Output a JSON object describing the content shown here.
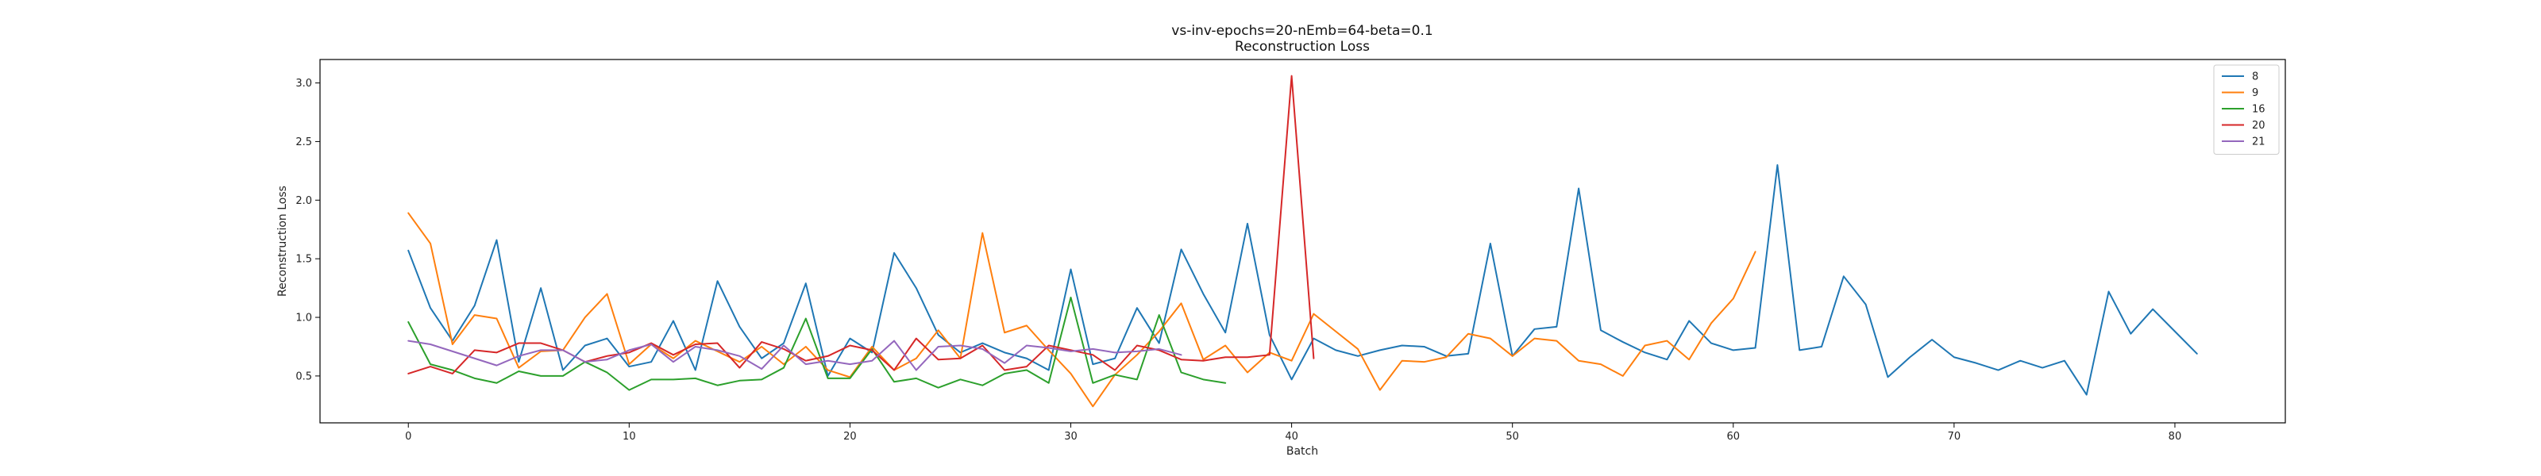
{
  "chart_data": {
    "type": "line",
    "title": "vs-inv-epochs=20-nEmb=64-beta=0.1",
    "subtitle": "Reconstruction Loss",
    "xlabel": "Batch",
    "ylabel": "Reconstruction Loss",
    "xlim": [
      -4,
      85
    ],
    "ylim": [
      0.1,
      3.2
    ],
    "xticks": [
      0,
      10,
      20,
      30,
      40,
      50,
      60,
      70,
      80
    ],
    "yticks": [
      0.5,
      1.0,
      1.5,
      2.0,
      2.5,
      3.0
    ],
    "ytick_labels": [
      "0.5",
      "1.0",
      "1.5",
      "2.0",
      "2.5",
      "3.0"
    ],
    "grid": false,
    "legend_position": "top-right",
    "series": [
      {
        "name": "8",
        "color": "#1f77b4",
        "values": [
          1.57,
          1.08,
          0.8,
          1.1,
          1.66,
          0.62,
          1.25,
          0.55,
          0.76,
          0.82,
          0.58,
          0.62,
          0.97,
          0.55,
          1.31,
          0.92,
          0.65,
          0.78,
          1.29,
          0.5,
          0.82,
          0.7,
          1.55,
          1.25,
          0.85,
          0.7,
          0.78,
          0.7,
          0.65,
          0.55,
          1.41,
          0.6,
          0.65,
          1.08,
          0.78,
          1.58,
          1.2,
          0.87,
          1.8,
          0.85,
          0.47,
          0.82,
          0.72,
          0.67,
          0.72,
          0.76,
          0.75,
          0.67,
          0.69,
          1.63,
          0.67,
          0.9,
          0.92,
          2.1,
          0.89,
          0.79,
          0.7,
          0.64,
          0.97,
          0.78,
          0.72,
          0.74,
          2.3,
          0.72,
          0.75,
          1.35,
          1.11,
          0.49,
          0.66,
          0.81,
          0.66,
          0.61,
          0.55,
          0.63,
          0.57,
          0.63,
          0.34,
          1.22,
          0.86,
          1.07,
          0.88,
          0.69
        ]
      },
      {
        "name": "9",
        "color": "#ff7f0e",
        "values": [
          1.89,
          1.63,
          0.77,
          1.02,
          0.99,
          0.57,
          0.71,
          0.72,
          1.0,
          1.2,
          0.6,
          0.77,
          0.65,
          0.8,
          0.71,
          0.62,
          0.75,
          0.6,
          0.75,
          0.55,
          0.49,
          0.75,
          0.55,
          0.65,
          0.89,
          0.65,
          1.72,
          0.87,
          0.93,
          0.72,
          0.52,
          0.24,
          0.51,
          0.68,
          0.88,
          1.12,
          0.64,
          0.76,
          0.53,
          0.7,
          0.63,
          1.03,
          0.88,
          0.73,
          0.38,
          0.63,
          0.62,
          0.66,
          0.86,
          0.82,
          0.67,
          0.82,
          0.8,
          0.63,
          0.6,
          0.5,
          0.76,
          0.8,
          0.64,
          0.95,
          1.16,
          1.56
        ]
      },
      {
        "name": "16",
        "color": "#2ca02c",
        "values": [
          0.96,
          0.6,
          0.55,
          0.48,
          0.44,
          0.54,
          0.5,
          0.5,
          0.62,
          0.53,
          0.38,
          0.47,
          0.47,
          0.48,
          0.42,
          0.46,
          0.47,
          0.57,
          0.99,
          0.48,
          0.48,
          0.73,
          0.45,
          0.48,
          0.4,
          0.47,
          0.42,
          0.52,
          0.55,
          0.44,
          1.17,
          0.44,
          0.51,
          0.47,
          1.02,
          0.53,
          0.47,
          0.44
        ]
      },
      {
        "name": "20",
        "color": "#d62728",
        "values": [
          0.52,
          0.58,
          0.52,
          0.72,
          0.7,
          0.78,
          0.78,
          0.72,
          0.62,
          0.67,
          0.7,
          0.78,
          0.68,
          0.77,
          0.78,
          0.57,
          0.79,
          0.73,
          0.63,
          0.67,
          0.76,
          0.72,
          0.55,
          0.82,
          0.64,
          0.65,
          0.76,
          0.55,
          0.58,
          0.76,
          0.72,
          0.68,
          0.55,
          0.76,
          0.72,
          0.64,
          0.63,
          0.66,
          0.66,
          0.68,
          3.06,
          0.65
        ]
      },
      {
        "name": "21",
        "color": "#9467bd",
        "values": [
          0.8,
          0.77,
          0.71,
          0.65,
          0.59,
          0.67,
          0.72,
          0.72,
          0.62,
          0.64,
          0.72,
          0.77,
          0.62,
          0.75,
          0.72,
          0.67,
          0.56,
          0.76,
          0.6,
          0.63,
          0.6,
          0.63,
          0.8,
          0.55,
          0.75,
          0.76,
          0.73,
          0.61,
          0.76,
          0.74,
          0.71,
          0.73,
          0.7,
          0.71,
          0.73,
          0.68
        ]
      }
    ]
  }
}
